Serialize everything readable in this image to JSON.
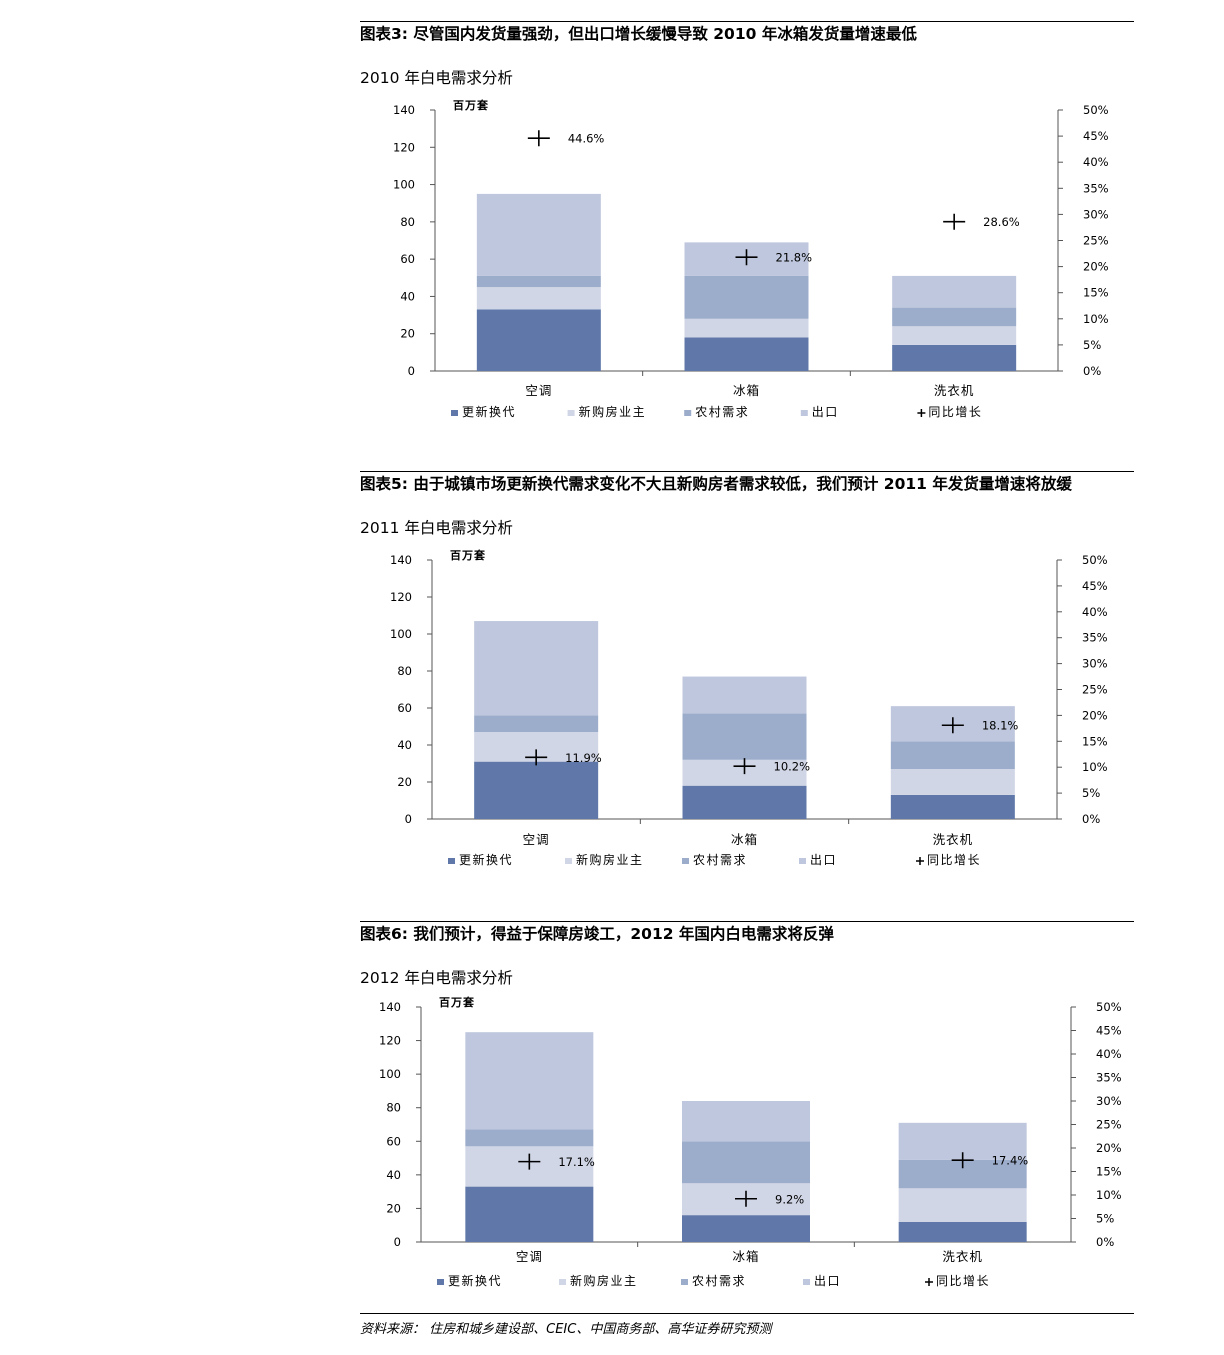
{
  "figures": [
    {
      "title": "图表3: 尽管国内发货量强劲，但出口增长缓慢导致 2010 年冰箱发货量增速最低",
      "subtitle": "2010 年白电需求分析"
    },
    {
      "title": "图表5: 由于城镇市场更新换代需求变化不大且新购房者需求较低，我们预计 2011 年发货量增速将放缓",
      "subtitle": "2011 年白电需求分析"
    },
    {
      "title": "图表6: 我们预计，得益于保障房竣工，2012 年国内白电需求将反弹",
      "subtitle": "2012 年白电需求分析"
    }
  ],
  "source": "资料来源： 住房和城乡建设部、CEIC、中国商务部、高华证券研究预测",
  "colors": {
    "更新换代": "#5f78a9",
    "新购房业主": "#d1d6e6",
    "农村需求": "#9caccb",
    "出口": "#bec7dd",
    "line": "#000000"
  },
  "chart_data": [
    {
      "type": "bar",
      "stacked": true,
      "y_unit_label": "百万套",
      "categories": [
        "空调",
        "冰箱",
        "洗衣机"
      ],
      "series": [
        {
          "name": "更新换代",
          "values": [
            33,
            18,
            14
          ]
        },
        {
          "name": "新购房业主",
          "values": [
            12,
            10,
            10
          ]
        },
        {
          "name": "农村需求",
          "values": [
            6,
            23,
            10
          ]
        },
        {
          "name": "出口",
          "values": [
            44,
            18,
            17
          ]
        }
      ],
      "growth": {
        "name": "同比增长",
        "values": [
          44.6,
          21.8,
          28.6
        ],
        "labels": [
          "44.6%",
          "21.8%",
          "28.6%"
        ]
      },
      "ylim": [
        0,
        140
      ],
      "yticks": [
        0,
        20,
        40,
        60,
        80,
        100,
        120,
        140
      ],
      "y2lim": [
        0,
        50
      ],
      "y2ticks": [
        "0%",
        "5%",
        "10%",
        "15%",
        "20%",
        "25%",
        "30%",
        "35%",
        "40%",
        "45%",
        "50%"
      ],
      "legend": "bottom"
    },
    {
      "type": "bar",
      "stacked": true,
      "y_unit_label": "百万套",
      "categories": [
        "空调",
        "冰箱",
        "洗衣机"
      ],
      "series": [
        {
          "name": "更新换代",
          "values": [
            31,
            18,
            13
          ]
        },
        {
          "name": "新购房业主",
          "values": [
            16,
            14,
            14
          ]
        },
        {
          "name": "农村需求",
          "values": [
            9,
            25,
            15
          ]
        },
        {
          "name": "出口",
          "values": [
            51,
            20,
            19
          ]
        }
      ],
      "growth": {
        "name": "同比增长",
        "values": [
          11.9,
          10.2,
          18.1
        ],
        "labels": [
          "11.9%",
          "10.2%",
          "18.1%"
        ]
      },
      "ylim": [
        0,
        140
      ],
      "yticks": [
        0,
        20,
        40,
        60,
        80,
        100,
        120,
        140
      ],
      "y2lim": [
        0,
        50
      ],
      "y2ticks": [
        "0%",
        "5%",
        "10%",
        "15%",
        "20%",
        "25%",
        "30%",
        "35%",
        "40%",
        "45%",
        "50%"
      ],
      "legend": "bottom"
    },
    {
      "type": "bar",
      "stacked": true,
      "y_unit_label": "百万套",
      "categories": [
        "空调",
        "冰箱",
        "洗衣机"
      ],
      "series": [
        {
          "name": "更新换代",
          "values": [
            33,
            16,
            12
          ]
        },
        {
          "name": "新购房业主",
          "values": [
            24,
            19,
            20
          ]
        },
        {
          "name": "农村需求",
          "values": [
            10,
            25,
            17
          ]
        },
        {
          "name": "出口",
          "values": [
            58,
            24,
            22
          ]
        }
      ],
      "growth": {
        "name": "同比增长",
        "values": [
          17.1,
          9.2,
          17.4
        ],
        "labels": [
          "17.1%",
          "9.2%",
          "17.4%"
        ]
      },
      "ylim": [
        0,
        140
      ],
      "yticks": [
        0,
        20,
        40,
        60,
        80,
        100,
        120,
        140
      ],
      "y2lim": [
        0,
        50
      ],
      "y2ticks": [
        "0%",
        "5%",
        "10%",
        "15%",
        "20%",
        "25%",
        "30%",
        "35%",
        "40%",
        "45%",
        "50%"
      ],
      "legend": "bottom"
    }
  ]
}
